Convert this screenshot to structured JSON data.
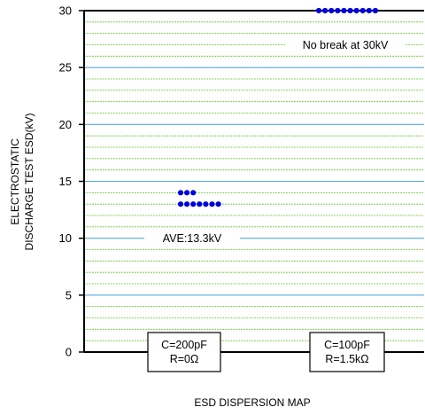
{
  "chart_data": {
    "type": "scatter",
    "ylabel": [
      "ELECTROSTATIC",
      "DISCHARGE TEST ESD(kV)"
    ],
    "xlabel": "ESD DISPERSION MAP",
    "ylim": [
      0,
      30
    ],
    "yticks": [
      0,
      5,
      10,
      15,
      20,
      25,
      30
    ],
    "grid": true,
    "minor_grid_color": "#66cc33",
    "major_grid_color": "#55aadd",
    "point_color": "#0000dd",
    "categories": [
      {
        "label_lines": [
          "C=200pF",
          "R=0Ω"
        ]
      },
      {
        "label_lines": [
          "C=100pF",
          "R=1.5kΩ"
        ]
      }
    ],
    "series": [
      {
        "category_index": 0,
        "points": [
          {
            "y": 14,
            "count": 3
          },
          {
            "y": 13,
            "count": 7
          }
        ]
      },
      {
        "category_index": 1,
        "points": [
          {
            "y": 30,
            "count": 10
          }
        ]
      }
    ],
    "annotations": [
      {
        "text": "AVE:13.3kV",
        "y": 10,
        "category_index": 0
      },
      {
        "text": "No break at 30kV",
        "y": 27,
        "category_index": 1
      }
    ]
  }
}
